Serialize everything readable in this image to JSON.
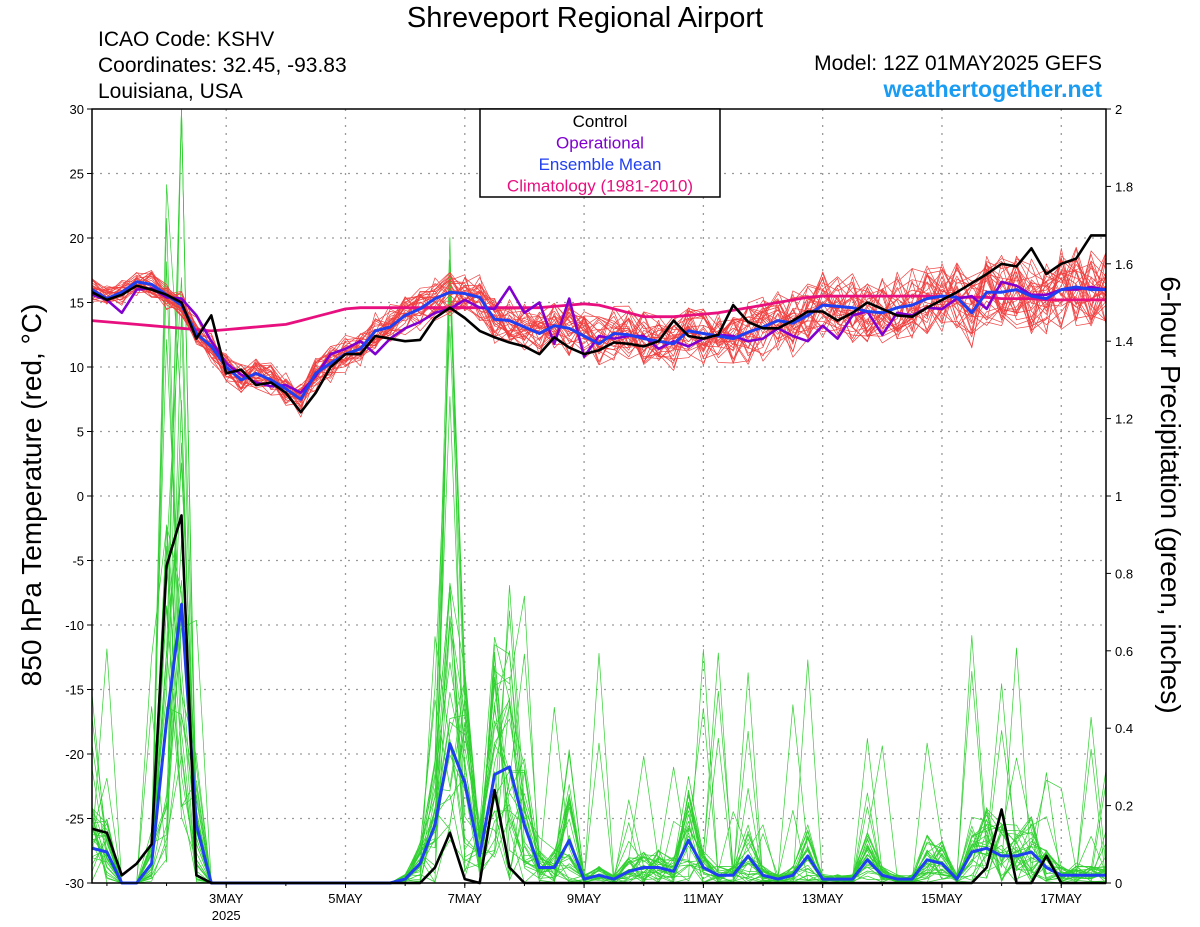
{
  "header": {
    "title": "Shreveport Regional Airport",
    "icao": "ICAO Code: KSHV",
    "coords": "Coordinates: 32.45, -93.83",
    "region": "Louisiana, USA",
    "model": "Model: 12Z 01MAY2025 GEFS",
    "site": "weathertogether.net"
  },
  "colors": {
    "control": "#000000",
    "operational": "#8000d0",
    "ensemble_mean": "#1f3ff0",
    "climatology": "#e8107f",
    "members_temp": "#f04040",
    "members_precip": "#30d030",
    "site": "#1a9cf2"
  },
  "chart_data": {
    "type": "line",
    "xlabel": "",
    "ylabel_left": "850 hPa Temperature (red, °C)",
    "ylabel_right": "6-hour Precipitation (green, inches)",
    "xlim": [
      0.75,
      17.75
    ],
    "ylim_left": [
      -30,
      30
    ],
    "ylim_right": [
      0,
      2
    ],
    "yticks_left": [
      30,
      25,
      20,
      15,
      10,
      5,
      0,
      -5,
      -10,
      -15,
      -20,
      -25,
      -30
    ],
    "yticks_right": [
      2,
      1.8,
      1.6,
      1.4,
      1.2,
      1,
      0.8,
      0.6,
      0.4,
      0.2,
      0
    ],
    "xticks": [
      {
        "day": 3,
        "label": "3MAY",
        "sub": "2025"
      },
      {
        "day": 5,
        "label": "5MAY"
      },
      {
        "day": 7,
        "label": "7MAY"
      },
      {
        "day": 9,
        "label": "9MAY"
      },
      {
        "day": 11,
        "label": "11MAY"
      },
      {
        "day": 13,
        "label": "13MAY"
      },
      {
        "day": 15,
        "label": "15MAY"
      },
      {
        "day": 17,
        "label": "17MAY"
      }
    ],
    "grid": "dotted",
    "legend": {
      "position": "top-center",
      "entries": [
        "Control",
        "Operational",
        "Ensemble Mean",
        "Climatology (1981-2010)"
      ]
    },
    "x": [
      0.75,
      1.0,
      1.25,
      1.5,
      1.75,
      2.0,
      2.25,
      2.5,
      2.75,
      3.0,
      3.25,
      3.5,
      3.75,
      4.0,
      4.25,
      4.5,
      4.75,
      5.0,
      5.25,
      5.5,
      5.75,
      6.0,
      6.25,
      6.5,
      6.75,
      7.0,
      7.25,
      7.5,
      7.75,
      8.0,
      8.25,
      8.5,
      8.75,
      9.0,
      9.25,
      9.5,
      9.75,
      10.0,
      10.25,
      10.5,
      10.75,
      11.0,
      11.25,
      11.5,
      11.75,
      12.0,
      12.25,
      12.5,
      12.75,
      13.0,
      13.25,
      13.5,
      13.75,
      14.0,
      14.25,
      14.5,
      14.75,
      15.0,
      15.25,
      15.5,
      15.75,
      16.0,
      16.25,
      16.5,
      16.75,
      17.0,
      17.25,
      17.5,
      17.75
    ],
    "temperature": {
      "control": [
        15.8,
        15.2,
        15.6,
        16.3,
        16.0,
        15.6,
        15.0,
        12.2,
        14.0,
        9.5,
        9.8,
        8.6,
        8.8,
        8.0,
        6.5,
        8.0,
        10.0,
        11.0,
        11.0,
        12.4,
        12.2,
        12.0,
        12.1,
        13.8,
        14.6,
        13.8,
        12.8,
        12.3,
        11.9,
        11.6,
        11.0,
        12.3,
        11.5,
        11.0,
        11.3,
        11.9,
        11.8,
        11.6,
        12.0,
        13.6,
        12.4,
        12.2,
        12.5,
        14.8,
        13.5,
        13.0,
        13.0,
        13.6,
        14.3,
        14.3,
        13.6,
        14.2,
        15.0,
        14.5,
        14.0,
        13.9,
        14.6,
        15.2,
        15.8,
        16.5,
        17.2,
        18.0,
        17.8,
        19.2,
        17.2,
        18.0,
        18.4,
        20.2,
        20.2
      ],
      "operational": [
        15.6,
        15.2,
        14.2,
        16.0,
        16.1,
        15.4,
        15.3,
        14.0,
        12.0,
        10.3,
        9.4,
        8.8,
        8.5,
        8.6,
        8.0,
        9.3,
        11.0,
        11.4,
        12.0,
        11.0,
        12.2,
        13.0,
        13.5,
        14.2,
        14.5,
        15.2,
        14.6,
        14.5,
        16.2,
        14.2,
        15.0,
        11.8,
        15.3,
        10.8,
        12.4,
        12.2,
        12.4,
        12.4,
        11.4,
        12.0,
        11.6,
        12.2,
        12.5,
        12.4,
        12.0,
        12.2,
        13.0,
        12.4,
        12.0,
        13.2,
        12.2,
        14.0,
        14.3,
        12.5,
        14.2,
        14.0,
        14.6,
        14.5,
        15.3,
        15.5,
        14.5,
        16.6,
        16.3,
        15.6,
        15.6,
        16.0,
        16.0,
        16.2,
        16.0
      ],
      "ensemble_mean": [
        16.0,
        15.3,
        15.8,
        16.6,
        16.4,
        15.6,
        14.8,
        12.6,
        11.6,
        10.0,
        9.0,
        9.5,
        9.0,
        8.3,
        7.5,
        9.5,
        10.3,
        11.0,
        11.4,
        12.8,
        13.1,
        14.0,
        14.5,
        15.3,
        15.8,
        15.7,
        15.4,
        13.7,
        13.6,
        13.1,
        12.6,
        13.2,
        13.0,
        12.4,
        11.8,
        12.6,
        12.5,
        12.2,
        12.0,
        11.8,
        12.8,
        12.6,
        12.4,
        12.2,
        12.7,
        13.1,
        13.6,
        13.4,
        14.0,
        14.8,
        14.7,
        14.6,
        14.3,
        14.2,
        14.6,
        14.8,
        15.3,
        15.5,
        15.4,
        14.2,
        15.8,
        15.8,
        16.0,
        15.5,
        15.3,
        16.0,
        16.2,
        16.0,
        16.0
      ],
      "climatology": [
        13.6,
        13.5,
        13.4,
        13.3,
        13.2,
        13.1,
        13.0,
        12.9,
        12.8,
        12.9,
        13.0,
        13.1,
        13.2,
        13.3,
        13.6,
        13.9,
        14.2,
        14.5,
        14.6,
        14.6,
        14.6,
        14.6,
        14.6,
        14.6,
        14.6,
        14.6,
        14.6,
        14.6,
        14.6,
        14.6,
        14.6,
        14.7,
        14.8,
        14.9,
        14.8,
        14.5,
        14.2,
        13.9,
        13.9,
        13.9,
        14.0,
        14.1,
        14.2,
        14.4,
        14.6,
        14.8,
        15.0,
        15.2,
        15.4,
        15.5,
        15.5,
        15.5,
        15.5,
        15.5,
        15.5,
        15.5,
        15.5,
        15.5,
        15.4,
        15.4,
        15.4,
        15.3,
        15.3,
        15.3,
        15.2,
        15.2,
        15.2,
        15.2,
        15.2
      ]
    },
    "precipitation": {
      "control": [
        0.14,
        0.13,
        0.02,
        0.05,
        0.1,
        0.82,
        0.95,
        0.02,
        0.0,
        0.0,
        0.0,
        0.0,
        0.0,
        0.0,
        0.0,
        0.0,
        0.0,
        0.0,
        0.0,
        0.0,
        0.0,
        0.0,
        0.0,
        0.04,
        0.13,
        0.01,
        0.0,
        0.24,
        0.04,
        0.0,
        0.0,
        0.0,
        0.0,
        0.0,
        0.0,
        0.0,
        0.0,
        0.0,
        0.0,
        0.0,
        0.0,
        0.0,
        0.0,
        0.0,
        0.0,
        0.0,
        0.0,
        0.0,
        0.0,
        0.0,
        0.0,
        0.0,
        0.0,
        0.0,
        0.0,
        0.0,
        0.0,
        0.0,
        0.0,
        0.0,
        0.04,
        0.19,
        0.0,
        0.0,
        0.07,
        0.0,
        0.0,
        0.0,
        0.0
      ],
      "ensemble_mean": [
        0.09,
        0.08,
        0.0,
        0.0,
        0.05,
        0.42,
        0.72,
        0.15,
        0.0,
        0.0,
        0.0,
        0.0,
        0.0,
        0.0,
        0.0,
        0.0,
        0.0,
        0.0,
        0.0,
        0.0,
        0.0,
        0.01,
        0.05,
        0.15,
        0.36,
        0.26,
        0.07,
        0.28,
        0.3,
        0.15,
        0.04,
        0.04,
        0.11,
        0.01,
        0.02,
        0.01,
        0.03,
        0.04,
        0.04,
        0.03,
        0.11,
        0.04,
        0.02,
        0.02,
        0.07,
        0.02,
        0.01,
        0.02,
        0.07,
        0.01,
        0.01,
        0.01,
        0.06,
        0.02,
        0.01,
        0.01,
        0.06,
        0.05,
        0.01,
        0.08,
        0.09,
        0.07,
        0.07,
        0.08,
        0.04,
        0.02,
        0.02,
        0.02,
        0.02
      ]
    }
  }
}
